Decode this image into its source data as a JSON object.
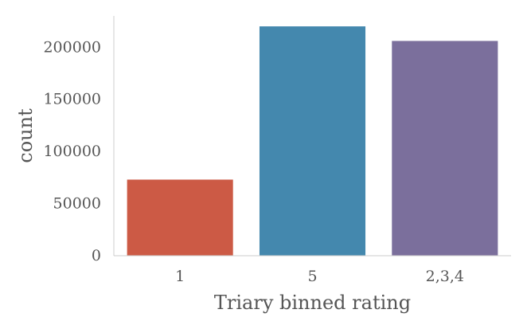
{
  "chart_data": {
    "type": "bar",
    "categories": [
      "1",
      "5",
      "2,3,4"
    ],
    "values": [
      73000,
      220000,
      206000
    ],
    "colors": [
      "#cc5a45",
      "#4488ae",
      "#7b6f9c"
    ],
    "xlabel": "Triary binned rating",
    "ylabel": "count",
    "ylim": [
      0,
      230000
    ],
    "yticks": [
      0,
      50000,
      100000,
      150000,
      200000
    ],
    "ytick_labels": [
      "0",
      "50000",
      "100000",
      "150000",
      "200000"
    ],
    "grid": false,
    "legend": "none"
  }
}
